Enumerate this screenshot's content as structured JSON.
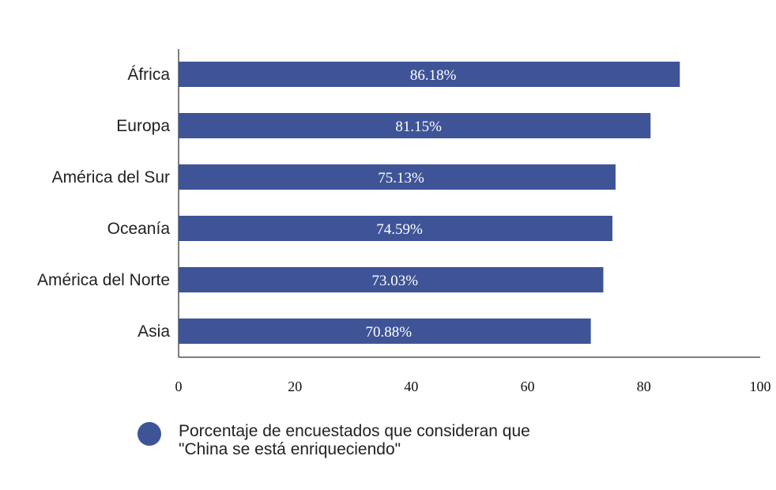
{
  "chart_data": {
    "type": "bar",
    "orientation": "horizontal",
    "categories": [
      "África",
      "Europa",
      "América del Sur",
      "Oceanía",
      "América del Norte",
      "Asia"
    ],
    "values": [
      86.18,
      81.15,
      75.13,
      74.59,
      73.03,
      70.88
    ],
    "data_labels": [
      "86.18%",
      "81.15%",
      "75.13%",
      "74.59%",
      "73.03%",
      "70.88%"
    ],
    "xlim": [
      0,
      100
    ],
    "xticks": [
      0,
      20,
      40,
      60,
      80,
      100
    ],
    "grid": false,
    "legend": {
      "placement": "bottom-left",
      "entries": [
        "Porcentaje de encuestados que consideran que\n\"China se está enriqueciendo\""
      ]
    },
    "bar_color": "#3f5497"
  }
}
